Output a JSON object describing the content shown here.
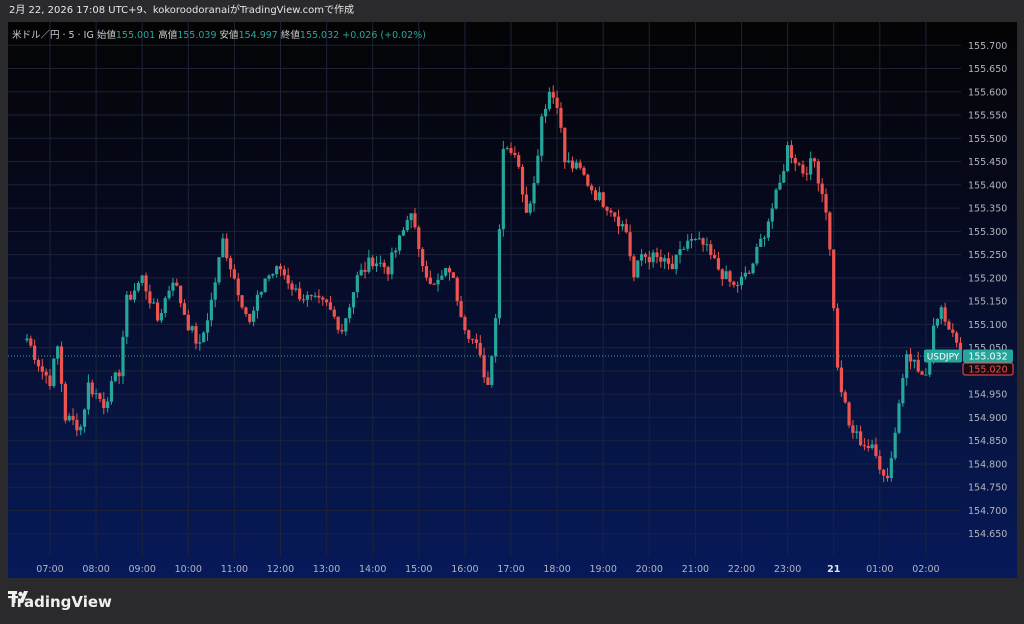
{
  "header": {
    "attribution": "2月 22, 2026 17:08 UTC+9、kokoroodoranaiがTradingView.comで作成"
  },
  "legend": {
    "symbol": "米ドル／円 · 5 · IG",
    "open_label": "始値",
    "open": "155.001",
    "high_label": "高値",
    "high": "155.039",
    "low_label": "安値",
    "low": "154.997",
    "close_label": "終値",
    "close": "155.032",
    "change": "+0.026 (+0.02%)"
  },
  "footer": {
    "brand": "TradingView"
  },
  "colors": {
    "up": "#26a69a",
    "down": "#ef5350",
    "grid": "#1c2338",
    "axis_text": "#b2b5be"
  },
  "chart_data": {
    "type": "candlestick",
    "title": "",
    "ylim": [
      154.6,
      155.75
    ],
    "y_ticks": [
      "155.700",
      "155.650",
      "155.600",
      "155.550",
      "155.500",
      "155.450",
      "155.400",
      "155.350",
      "155.300",
      "155.250",
      "155.200",
      "155.150",
      "155.100",
      "155.050",
      "155.000",
      "154.950",
      "154.900",
      "154.850",
      "154.800",
      "154.750",
      "154.700",
      "154.650"
    ],
    "x_ticks": [
      "07:00",
      "08:00",
      "09:00",
      "10:00",
      "11:00",
      "12:00",
      "13:00",
      "14:00",
      "15:00",
      "16:00",
      "17:00",
      "18:00",
      "19:00",
      "20:00",
      "21:00",
      "22:00",
      "23:00",
      "21",
      "01:00",
      "02:00"
    ],
    "price_tags": [
      {
        "label": "USDJPY",
        "value": "155.032"
      },
      {
        "label": "",
        "value": "155.020"
      }
    ],
    "anchors": [
      [
        "06:30",
        155.07
      ],
      [
        "06:50",
        155.0
      ],
      [
        "07:00",
        154.98
      ],
      [
        "07:10",
        155.05
      ],
      [
        "07:20",
        154.9
      ],
      [
        "07:40",
        154.88
      ],
      [
        "07:50",
        154.97
      ],
      [
        "08:10",
        154.93
      ],
      [
        "08:30",
        155.0
      ],
      [
        "08:40",
        155.15
      ],
      [
        "09:00",
        155.2
      ],
      [
        "09:20",
        155.11
      ],
      [
        "09:40",
        155.2
      ],
      [
        "10:00",
        155.1
      ],
      [
        "10:15",
        155.05
      ],
      [
        "10:30",
        155.15
      ],
      [
        "10:45",
        155.28
      ],
      [
        "11:00",
        155.2
      ],
      [
        "11:20",
        155.1
      ],
      [
        "11:40",
        155.2
      ],
      [
        "12:00",
        155.22
      ],
      [
        "12:20",
        155.17
      ],
      [
        "12:40",
        155.15
      ],
      [
        "13:00",
        155.14
      ],
      [
        "13:20",
        155.09
      ],
      [
        "13:40",
        155.2
      ],
      [
        "14:00",
        155.24
      ],
      [
        "14:20",
        155.22
      ],
      [
        "14:40",
        155.3
      ],
      [
        "14:50",
        155.35
      ],
      [
        "15:00",
        155.25
      ],
      [
        "15:20",
        155.18
      ],
      [
        "15:40",
        155.22
      ],
      [
        "16:00",
        155.1
      ],
      [
        "16:15",
        155.05
      ],
      [
        "16:30",
        154.97
      ],
      [
        "16:40",
        155.12
      ],
      [
        "16:50",
        155.49
      ],
      [
        "17:05",
        155.47
      ],
      [
        "17:20",
        155.35
      ],
      [
        "17:30",
        155.4
      ],
      [
        "17:40",
        155.55
      ],
      [
        "17:50",
        155.6
      ],
      [
        "18:00",
        155.58
      ],
      [
        "18:10",
        155.45
      ],
      [
        "18:30",
        155.43
      ],
      [
        "18:50",
        155.38
      ],
      [
        "19:10",
        155.35
      ],
      [
        "19:30",
        155.3
      ],
      [
        "19:40",
        155.2
      ],
      [
        "19:50",
        155.25
      ],
      [
        "20:10",
        155.24
      ],
      [
        "20:30",
        155.22
      ],
      [
        "20:50",
        155.28
      ],
      [
        "21:10",
        155.27
      ],
      [
        "21:30",
        155.22
      ],
      [
        "21:50",
        155.18
      ],
      [
        "22:10",
        155.21
      ],
      [
        "22:30",
        155.3
      ],
      [
        "22:50",
        155.4
      ],
      [
        "23:00",
        155.48
      ],
      [
        "23:20",
        155.43
      ],
      [
        "23:35",
        155.45
      ],
      [
        "23:50",
        155.35
      ],
      [
        "23:58",
        155.2
      ],
      [
        "00:05",
        155.0
      ],
      [
        "00:20",
        154.88
      ],
      [
        "00:35",
        154.85
      ],
      [
        "00:50",
        154.83
      ],
      [
        "01:00",
        154.8
      ],
      [
        "01:10",
        154.77
      ],
      [
        "01:20",
        154.87
      ],
      [
        "01:35",
        155.05
      ],
      [
        "01:50",
        155.0
      ],
      [
        "02:00",
        154.98
      ],
      [
        "02:10",
        155.1
      ],
      [
        "02:20",
        155.14
      ],
      [
        "02:30",
        155.1
      ],
      [
        "02:40",
        155.05
      ],
      [
        "02:45",
        155.032
      ]
    ]
  }
}
